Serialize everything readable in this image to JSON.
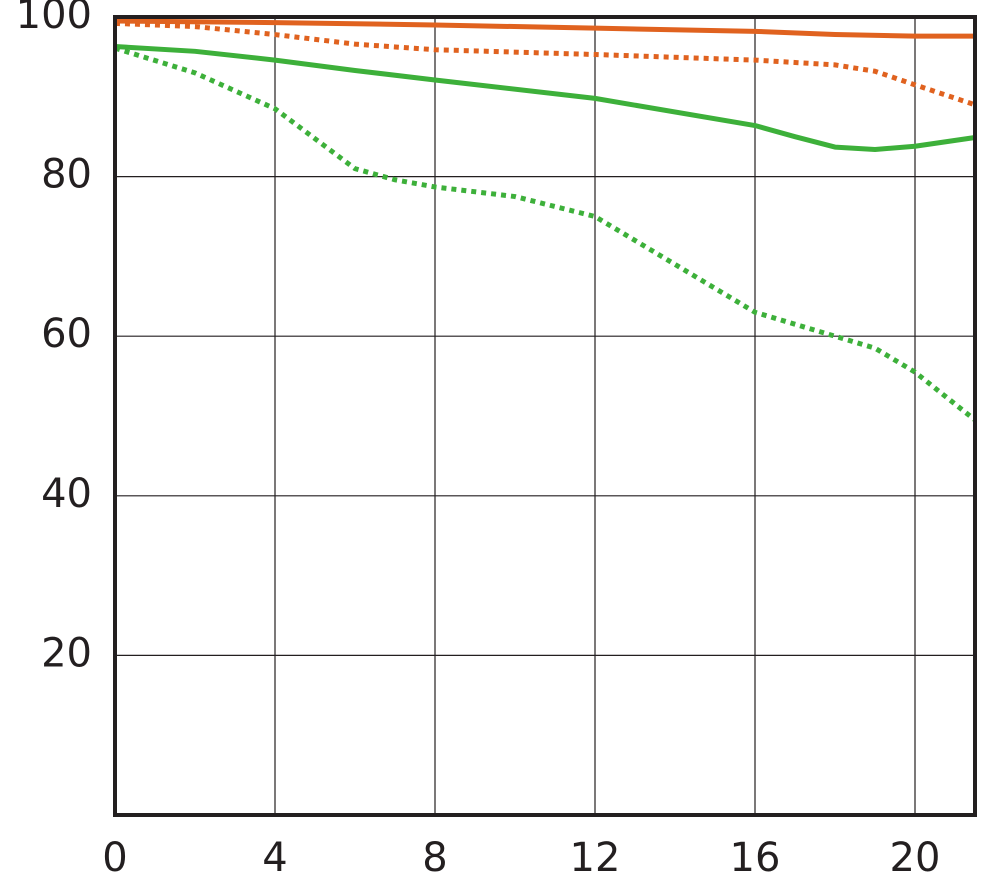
{
  "chart_data": {
    "type": "line",
    "xlim": [
      0,
      21.5
    ],
    "xticks": [
      0,
      4,
      8,
      12,
      16,
      20
    ],
    "ylim": [
      0,
      100
    ],
    "yticks": [
      20,
      40,
      60,
      80,
      100
    ],
    "grid": true,
    "series": [
      {
        "color": "#e0621f",
        "dash": "solid",
        "x": [
          0,
          4,
          8,
          12,
          16,
          18,
          20,
          21.5
        ],
        "values": [
          99.5,
          99.3,
          99,
          98.6,
          98.2,
          97.8,
          97.6,
          97.6
        ]
      },
      {
        "color": "#e0621f",
        "dash": "dotted",
        "x": [
          0,
          2,
          4,
          6,
          8,
          12,
          16,
          18,
          19,
          20,
          21.5
        ],
        "values": [
          99.2,
          98.8,
          97.8,
          96.6,
          95.9,
          95.3,
          94.6,
          94,
          93.2,
          91.5,
          89
        ]
      },
      {
        "color": "#3db03a",
        "dash": "solid",
        "x": [
          0,
          2,
          4,
          6,
          8,
          12,
          16,
          17,
          18,
          19,
          20,
          21.5
        ],
        "values": [
          96.3,
          95.7,
          94.6,
          93.3,
          92.1,
          89.8,
          86.4,
          85,
          83.7,
          83.4,
          83.8,
          84.9
        ]
      },
      {
        "color": "#3db03a",
        "dash": "dotted",
        "x": [
          0,
          2,
          4,
          6,
          7,
          8,
          10,
          12,
          14,
          16,
          18,
          19,
          20,
          21.5
        ],
        "values": [
          96.1,
          93,
          88.5,
          81,
          79.6,
          78.7,
          77.5,
          75,
          69,
          63,
          60,
          58.5,
          55.5,
          49.5
        ]
      }
    ]
  }
}
